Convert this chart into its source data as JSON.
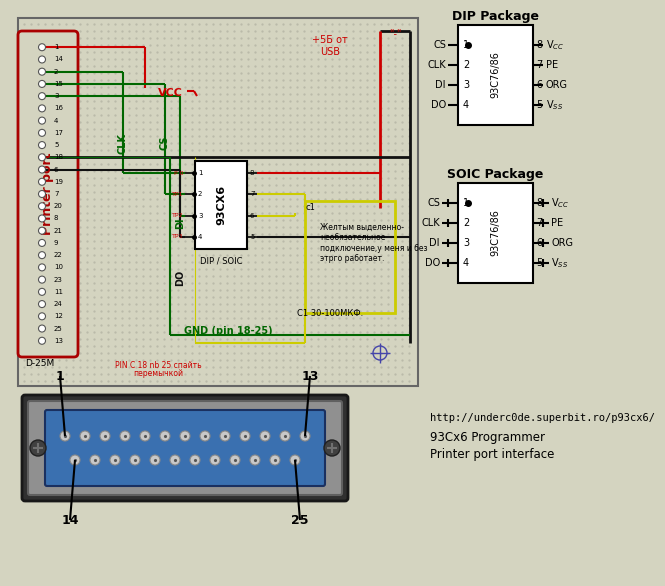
{
  "bg_color": "#d4d4c0",
  "url": "http://underc0de.superbit.ro/p93cx6/",
  "programmer_name": "93Cx6 Programmer",
  "interface": "Printer port interface",
  "dip_title": "DIP Package",
  "soic_title": "SOIC Package",
  "chip_label": "93C76/86",
  "chip_name_circuit": "93CX6",
  "printer_port_label": "Printer port",
  "d25m_label": "D-25M",
  "vcc_label": "VCC",
  "gnd_label": "GND (pin 18-25)",
  "clk_label": "CLK",
  "cs_label": "CS",
  "di_label": "DI",
  "do_label": "DO",
  "pin_note_line1": "PIN C 18 nb 25 спайть",
  "pin_note_line2": "перемычкой",
  "yellow_note": "Желтым выделенно-\nнеобязательное\nподключение,у меня и без\nэтрго работает.",
  "c1_value": "C1 30-100МКФ.",
  "usb_label": "+5Б от\nUSB",
  "minus_label": "\"-\"",
  "wire_red": "#cc0000",
  "wire_green": "#006600",
  "wire_black": "#111111",
  "wire_yellow": "#cccc00",
  "port_red": "#aa0000",
  "dip_pins_left": [
    "CS",
    "CLK",
    "DI",
    "DO"
  ],
  "dip_pins_right": [
    "V",
    "PE",
    "ORG",
    "V"
  ],
  "dip_subs_right": [
    "CC",
    "",
    "",
    "SS"
  ],
  "dip_nums_left": [
    "1",
    "2",
    "3",
    "4"
  ],
  "dip_nums_right": [
    "8",
    "7",
    "6",
    "5"
  ]
}
